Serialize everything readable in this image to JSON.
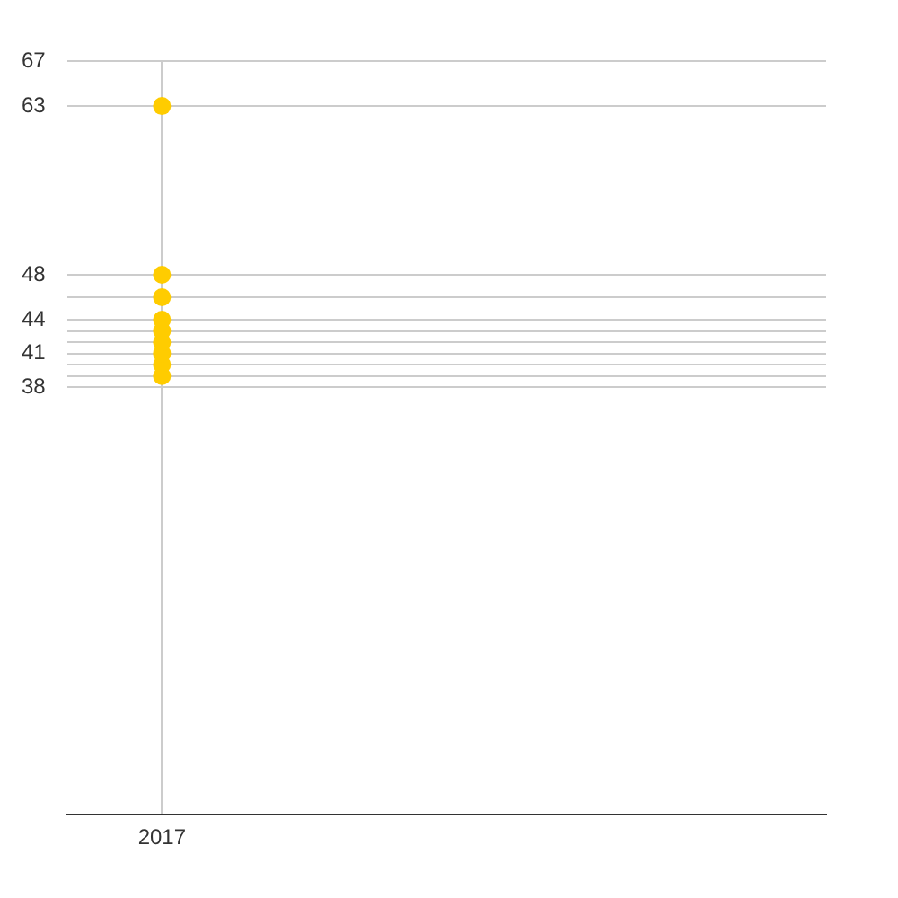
{
  "chart_data": {
    "type": "scatter",
    "categories": [
      "2017",
      null,
      null,
      null
    ],
    "series": [
      {
        "color": "#ffcc00",
        "values": [
          63,
          null,
          null,
          null
        ]
      },
      {
        "color": "#ffcc00",
        "values": [
          48,
          null,
          null,
          null
        ]
      },
      {
        "color": "#ffcc00",
        "values": [
          46,
          null,
          null,
          null
        ]
      },
      {
        "color": "#ffcc00",
        "values": [
          44,
          null,
          null,
          null
        ]
      },
      {
        "color": "#ffcc00",
        "values": [
          43,
          null,
          null,
          null
        ]
      },
      {
        "color": "#ffcc00",
        "values": [
          42,
          null,
          null,
          null
        ]
      },
      {
        "color": "#ffcc00",
        "values": [
          41,
          null,
          null,
          null
        ]
      },
      {
        "color": "#ffcc00",
        "values": [
          40,
          null,
          null,
          null
        ]
      },
      {
        "color": "#ffcc00",
        "values": [
          39,
          null,
          null,
          null
        ]
      }
    ],
    "ylim": [
      0,
      67
    ],
    "yticks": [
      {
        "value": 0,
        "label": null
      },
      38,
      {
        "value": 39,
        "label": null
      },
      {
        "value": 40,
        "label": null
      },
      41,
      {
        "value": 42,
        "label": null
      },
      {
        "value": 43,
        "label": null
      },
      44,
      {
        "value": 46,
        "label": null
      },
      48,
      63,
      67
    ],
    "grid": true,
    "legend": false,
    "marker": "circle"
  }
}
